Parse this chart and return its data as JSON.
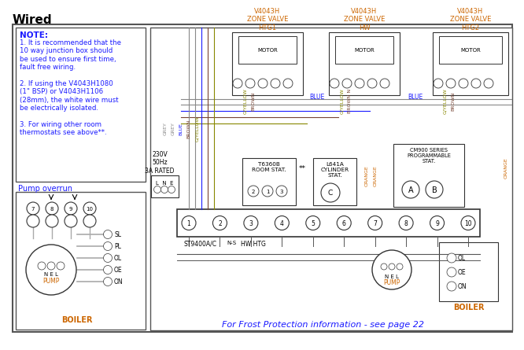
{
  "title": "Wired",
  "bg": "#ffffff",
  "bl": "#1a1aff",
  "or": "#cc6600",
  "gr": "#888888",
  "br": "#774433",
  "gy": "#888800",
  "bk": "#222222",
  "note_title": "NOTE:",
  "note_body_lines": [
    "1. It is recommended that the",
    "10 way junction box should",
    "be used to ensure first time,",
    "fault free wiring.",
    "",
    "2. If using the V4043H1080",
    "(1\" BSP) or V4043H1106",
    "(28mm), the white wire must",
    "be electrically isolated.",
    "",
    "3. For wiring other room",
    "thermostats see above**."
  ],
  "pump_overrun": "Pump overrun",
  "zv1": "V4043H\nZONE VALVE\nHTG1",
  "zv2": "V4043H\nZONE VALVE\nHW",
  "zv3": "V4043H\nZONE VALVE\nHTG2",
  "frost": "For Frost Protection information - see page 22",
  "voltage": "230V\n50Hz\n3A RATED",
  "t6360b": "T6360B\nROOM STAT.",
  "l641a": "L641A\nCYLINDER\nSTAT.",
  "cm900": "CM900 SERIES\nPROGRAMMABLE\nSTAT.",
  "st9400": "ST9400A/C",
  "hw_htg": "HW HTG",
  "boiler": "BOILER",
  "pump": "PUMP",
  "motor": "MOTOR",
  "nel": "N E L",
  "lne": "L  N  E"
}
